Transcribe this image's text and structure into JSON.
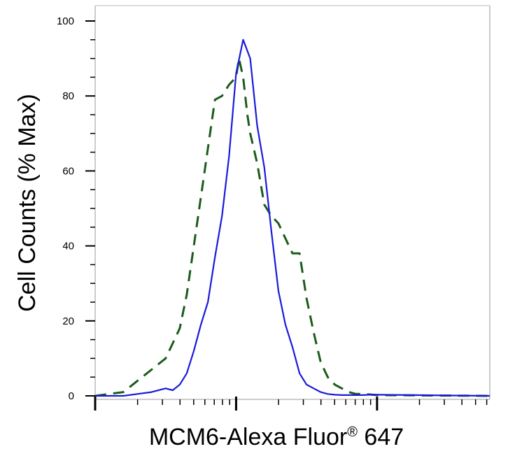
{
  "chart_data": {
    "type": "line",
    "title": "",
    "xlabel": "MCM6-Alexa Fluor",
    "xlabel_superscript": "®",
    "xlabel_suffix": " 647",
    "ylabel": "Cell Counts (% Max)",
    "x_scale": "log",
    "x_decades": [
      0,
      1,
      2
    ],
    "xlim": [
      0,
      2.8
    ],
    "ylim": [
      0,
      100
    ],
    "y_ticks": [
      0,
      20,
      40,
      60,
      80,
      100
    ],
    "y_tick_labels": [
      "0",
      "20",
      "40",
      "60",
      "80",
      "100"
    ],
    "grid": false,
    "legend": "none",
    "series": [
      {
        "style": "dashed",
        "color": "#1a5c1a",
        "x": [
          0.0,
          0.2,
          0.3,
          0.4,
          0.5,
          0.55,
          0.6,
          0.65,
          0.7,
          0.75,
          0.8,
          0.85,
          0.9,
          0.95,
          1.0,
          1.02,
          1.05,
          1.08,
          1.1,
          1.15,
          1.2,
          1.25,
          1.3,
          1.35,
          1.4,
          1.45,
          1.5,
          1.55,
          1.6,
          1.65,
          1.7,
          1.75,
          1.8,
          1.85,
          1.9,
          2.0,
          2.8
        ],
        "y": [
          0,
          1,
          4,
          7,
          10,
          14,
          18,
          27,
          40,
          53,
          66,
          79,
          80,
          83,
          85,
          90,
          85,
          75,
          70,
          62,
          51,
          48,
          46,
          42,
          38,
          38,
          26,
          17,
          9,
          5,
          3,
          2,
          1,
          0.5,
          0.5,
          0.2,
          0
        ]
      },
      {
        "style": "solid",
        "color": "#1a1adb",
        "x": [
          0.0,
          0.2,
          0.3,
          0.4,
          0.5,
          0.55,
          0.6,
          0.65,
          0.7,
          0.75,
          0.8,
          0.85,
          0.9,
          0.95,
          1.0,
          1.05,
          1.1,
          1.15,
          1.2,
          1.25,
          1.3,
          1.35,
          1.4,
          1.45,
          1.5,
          1.55,
          1.6,
          1.65,
          1.7,
          1.75,
          1.8,
          1.85,
          1.9,
          1.95,
          2.0,
          2.8
        ],
        "y": [
          0,
          0,
          0.5,
          1,
          2,
          1.5,
          3,
          6,
          12,
          19,
          25,
          37,
          48,
          64,
          86,
          95,
          90,
          72,
          61,
          44,
          28,
          19,
          13,
          6,
          3,
          2,
          1,
          0.5,
          0.3,
          0.2,
          0.2,
          0.2,
          0.2,
          0.3,
          0.3,
          0
        ]
      }
    ]
  }
}
